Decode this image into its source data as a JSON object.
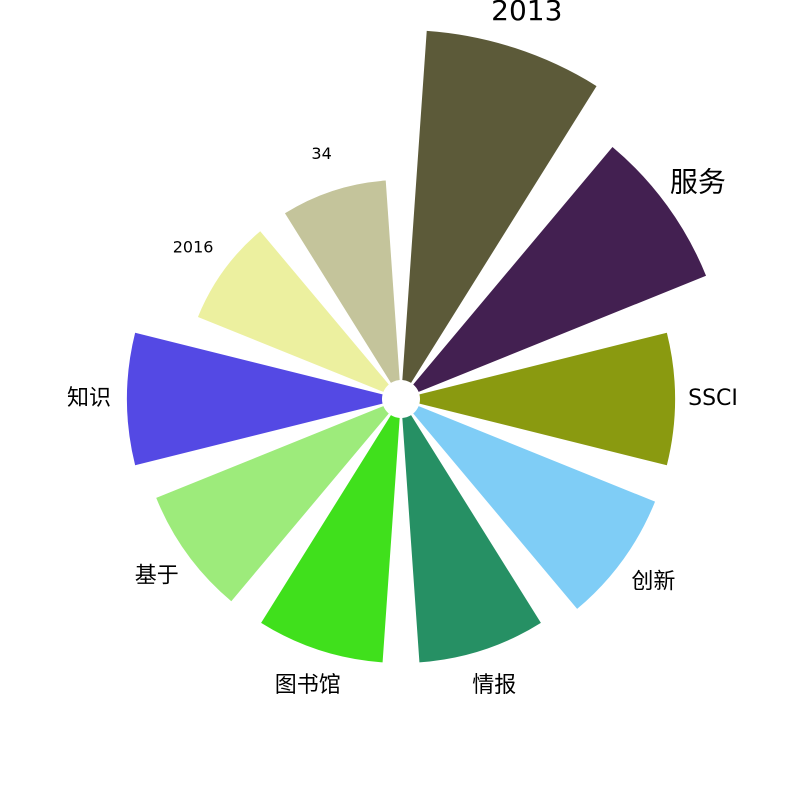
{
  "chart_data": {
    "type": "polar-bar",
    "categories": [
      "2013",
      "服务",
      "SSCI",
      "创新",
      "情报",
      "图书馆",
      "基于",
      "知识",
      "2016",
      "34"
    ],
    "values": [
      350,
      310,
      255,
      255,
      245,
      245,
      245,
      255,
      200,
      200
    ],
    "value_unit": "relative length",
    "label_sizes": [
      "large",
      "large",
      "medium",
      "medium",
      "medium",
      "medium",
      "medium",
      "medium",
      "small",
      "small"
    ],
    "colors": [
      "#5c5a39",
      "#432051",
      "#8a9a10",
      "#7fcdf6",
      "#269064",
      "#40e01c",
      "#9deb7b",
      "#5449e4",
      "#ecf09f",
      "#c4c49b"
    ],
    "start_angle_deg": 90,
    "direction": "clockwise",
    "legend": "none",
    "grid": false
  }
}
